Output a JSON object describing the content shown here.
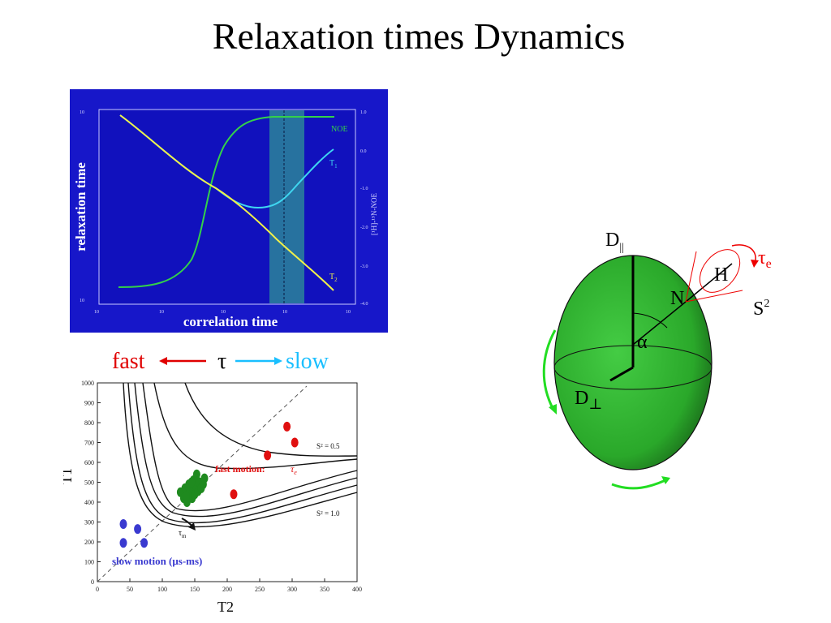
{
  "slide": {
    "title": "Relaxation times Dynamics"
  },
  "top_chart": {
    "ylabel": "relaxation time",
    "xlabel": "correlation time",
    "curve_labels": {
      "noe": "NOE",
      "t1": "T",
      "t1_sub": "1",
      "t2": "T",
      "t2_sub": "2"
    },
    "right_axis_label": "[¹H]-¹⁵N-NOE",
    "colors": {
      "background": "#1717c9",
      "plot": "#1111bd",
      "noe": "#33d14a",
      "t1": "#3fd6f0",
      "t2": "#f0f04a",
      "band": "#2a7d9b"
    }
  },
  "tau_scale": {
    "fast": "fast",
    "tau": "τ",
    "slow": "slow",
    "fast_color": "#e00000",
    "slow_color": "#19bfff"
  },
  "chart_data": {
    "type": "scatter",
    "xlabel": "T2",
    "ylabel": "T1",
    "xlim": [
      0,
      400
    ],
    "ylim": [
      0,
      1000
    ],
    "xticks": [
      "0",
      "50",
      "100",
      "150",
      "200",
      "250",
      "300",
      "350",
      "400"
    ],
    "yticks": [
      "0",
      "100",
      "200",
      "300",
      "400",
      "500",
      "600",
      "700",
      "800",
      "900",
      "1000"
    ],
    "series": [
      {
        "values": [
          [
            40,
            290
          ],
          [
            62,
            265
          ],
          [
            40,
            195
          ],
          [
            72,
            195
          ]
        ],
        "color": "#3a3ad0"
      },
      {
        "values": [
          [
            210,
            440
          ],
          [
            262,
            635
          ],
          [
            292,
            780
          ],
          [
            304,
            700
          ]
        ],
        "color": "#e01010"
      },
      {
        "values": [
          [
            128,
            450
          ],
          [
            133,
            420
          ],
          [
            135,
            470
          ],
          [
            138,
            400
          ],
          [
            140,
            440
          ],
          [
            141,
            490
          ],
          [
            143,
            455
          ],
          [
            146,
            420
          ],
          [
            147,
            470
          ],
          [
            148,
            510
          ],
          [
            150,
            440
          ],
          [
            152,
            480
          ],
          [
            153,
            540
          ],
          [
            155,
            455
          ],
          [
            157,
            500
          ],
          [
            160,
            470
          ],
          [
            163,
            490
          ],
          [
            165,
            520
          ],
          [
            137,
            430
          ],
          [
            145,
            500
          ]
        ],
        "color": "#1f8a1f"
      }
    ],
    "annotations": {
      "s2_top": "S² = 0.5",
      "s2_bottom": "S² = 1.0",
      "fast_motion": "fast motion:",
      "tau_e": "τ",
      "tau_e_sub": "e",
      "slow_motion": "slow motion (μs-ms)",
      "tau_m": "τ",
      "tau_m_sub": "m"
    }
  },
  "ellipsoid": {
    "d_parallel": "D",
    "d_parallel_sub": "||",
    "d_perp": "D",
    "d_perp_sub": "⊥",
    "alpha": "α",
    "n_label": "N",
    "h_label": "H",
    "tau_e": "τ",
    "tau_e_sub": "e",
    "s2": "S",
    "s2_sup": "2",
    "colors": {
      "body": "#33bb33",
      "arrows": "#22dd22",
      "cone": "#ee0000"
    }
  }
}
